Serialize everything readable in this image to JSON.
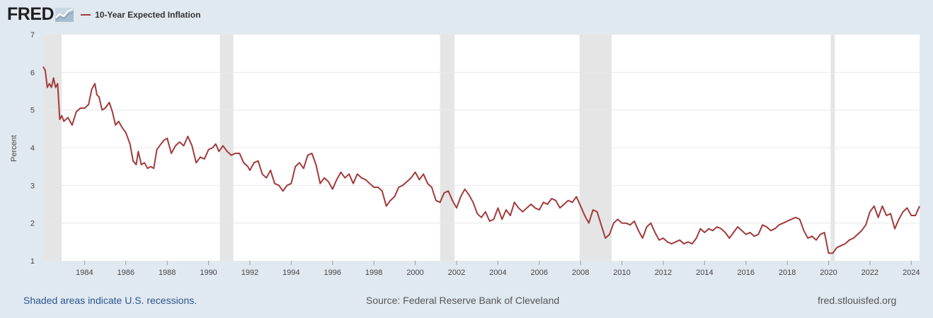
{
  "header": {
    "logo_text": "FRED",
    "legend_label": "10-Year Expected Inflation"
  },
  "footer": {
    "recession_note": "Shaded areas indicate U.S. recessions.",
    "source": "Source: Federal Reserve Bank of Cleveland",
    "site": "fred.stlouisfed.org"
  },
  "chart_data": {
    "type": "line",
    "title": "",
    "xlabel": "",
    "ylabel": "Percent",
    "xlim": [
      1982.0,
      2024.4
    ],
    "ylim": [
      1,
      7
    ],
    "y_ticks": [
      1,
      2,
      3,
      4,
      5,
      6,
      7
    ],
    "x_ticks": [
      1984,
      1986,
      1988,
      1990,
      1992,
      1994,
      1996,
      1998,
      2000,
      2002,
      2004,
      2006,
      2008,
      2010,
      2012,
      2014,
      2016,
      2018,
      2020,
      2022,
      2024
    ],
    "grid": true,
    "legend": "top-left",
    "colors": {
      "series": "#a23a3c",
      "recession": "#e5e5e5",
      "plot_bg": "#ffffff"
    },
    "recessions": [
      [
        1982.0,
        1982.9
      ],
      [
        1990.55,
        1991.2
      ],
      [
        2001.2,
        2001.9
      ],
      [
        2007.95,
        2009.5
      ],
      [
        2020.1,
        2020.3
      ]
    ],
    "series": [
      {
        "name": "10-Year Expected Inflation",
        "x": [
          1982.0,
          1982.1,
          1982.2,
          1982.3,
          1982.4,
          1982.5,
          1982.6,
          1982.7,
          1982.8,
          1982.9,
          1983.0,
          1983.2,
          1983.4,
          1983.6,
          1983.8,
          1984.0,
          1984.2,
          1984.35,
          1984.5,
          1984.6,
          1984.7,
          1984.85,
          1985.0,
          1985.2,
          1985.35,
          1985.5,
          1985.65,
          1985.8,
          1986.0,
          1986.2,
          1986.35,
          1986.5,
          1986.6,
          1986.75,
          1986.9,
          1987.05,
          1987.2,
          1987.35,
          1987.5,
          1987.7,
          1987.85,
          1988.0,
          1988.2,
          1988.4,
          1988.6,
          1988.8,
          1989.0,
          1989.2,
          1989.4,
          1989.6,
          1989.8,
          1990.0,
          1990.2,
          1990.35,
          1990.5,
          1990.7,
          1990.9,
          1991.1,
          1991.3,
          1991.5,
          1991.7,
          1991.9,
          1992.0,
          1992.2,
          1992.4,
          1992.6,
          1992.8,
          1993.0,
          1993.2,
          1993.4,
          1993.6,
          1993.8,
          1994.0,
          1994.2,
          1994.4,
          1994.6,
          1994.8,
          1995.0,
          1995.2,
          1995.4,
          1995.6,
          1995.8,
          1996.0,
          1996.2,
          1996.4,
          1996.6,
          1996.8,
          1997.0,
          1997.2,
          1997.4,
          1997.6,
          1997.8,
          1998.0,
          1998.2,
          1998.4,
          1998.6,
          1998.8,
          1999.0,
          1999.2,
          1999.4,
          1999.6,
          1999.8,
          2000.0,
          2000.2,
          2000.4,
          2000.6,
          2000.8,
          2001.0,
          2001.2,
          2001.4,
          2001.6,
          2001.8,
          2002.0,
          2002.2,
          2002.4,
          2002.6,
          2002.8,
          2003.0,
          2003.2,
          2003.4,
          2003.6,
          2003.8,
          2004.0,
          2004.2,
          2004.4,
          2004.6,
          2004.8,
          2005.0,
          2005.2,
          2005.4,
          2005.6,
          2005.8,
          2006.0,
          2006.2,
          2006.4,
          2006.6,
          2006.8,
          2007.0,
          2007.2,
          2007.4,
          2007.6,
          2007.8,
          2008.0,
          2008.2,
          2008.4,
          2008.6,
          2008.8,
          2009.0,
          2009.2,
          2009.4,
          2009.6,
          2009.8,
          2010.0,
          2010.2,
          2010.4,
          2010.6,
          2010.8,
          2011.0,
          2011.2,
          2011.4,
          2011.6,
          2011.8,
          2012.0,
          2012.2,
          2012.4,
          2012.6,
          2012.8,
          2013.0,
          2013.2,
          2013.4,
          2013.6,
          2013.8,
          2014.0,
          2014.2,
          2014.4,
          2014.6,
          2014.8,
          2015.0,
          2015.2,
          2015.4,
          2015.6,
          2015.8,
          2016.0,
          2016.2,
          2016.4,
          2016.6,
          2016.8,
          2017.0,
          2017.2,
          2017.4,
          2017.6,
          2017.8,
          2018.0,
          2018.2,
          2018.4,
          2018.6,
          2018.8,
          2019.0,
          2019.2,
          2019.4,
          2019.6,
          2019.8,
          2020.0,
          2020.2,
          2020.4,
          2020.6,
          2020.8,
          2021.0,
          2021.2,
          2021.4,
          2021.6,
          2021.8,
          2022.0,
          2022.2,
          2022.4,
          2022.6,
          2022.8,
          2023.0,
          2023.2,
          2023.4,
          2023.6,
          2023.8,
          2024.0,
          2024.2,
          2024.4
        ],
        "values": [
          6.15,
          6.05,
          5.6,
          5.7,
          5.6,
          5.85,
          5.6,
          5.7,
          4.75,
          4.85,
          4.7,
          4.8,
          4.6,
          4.95,
          5.05,
          5.05,
          5.15,
          5.55,
          5.7,
          5.4,
          5.35,
          5.0,
          5.05,
          5.2,
          4.95,
          4.6,
          4.7,
          4.55,
          4.4,
          4.1,
          3.65,
          3.55,
          3.9,
          3.55,
          3.6,
          3.45,
          3.5,
          3.45,
          3.95,
          4.1,
          4.2,
          4.25,
          3.85,
          4.05,
          4.15,
          4.05,
          4.3,
          4.05,
          3.6,
          3.75,
          3.7,
          3.95,
          4.0,
          4.1,
          3.9,
          4.05,
          3.9,
          3.8,
          3.85,
          3.85,
          3.6,
          3.5,
          3.4,
          3.6,
          3.65,
          3.3,
          3.2,
          3.4,
          3.05,
          3.0,
          2.85,
          3.0,
          3.05,
          3.5,
          3.6,
          3.45,
          3.8,
          3.85,
          3.55,
          3.05,
          3.2,
          3.1,
          2.9,
          3.15,
          3.35,
          3.2,
          3.3,
          3.05,
          3.3,
          3.2,
          3.15,
          3.05,
          2.95,
          2.95,
          2.85,
          2.45,
          2.6,
          2.7,
          2.95,
          3.0,
          3.1,
          3.2,
          3.35,
          3.15,
          3.3,
          3.05,
          2.95,
          2.6,
          2.55,
          2.8,
          2.85,
          2.6,
          2.4,
          2.7,
          2.9,
          2.75,
          2.55,
          2.25,
          2.15,
          2.3,
          2.05,
          2.1,
          2.4,
          2.1,
          2.35,
          2.2,
          2.55,
          2.4,
          2.3,
          2.4,
          2.5,
          2.4,
          2.35,
          2.55,
          2.5,
          2.65,
          2.6,
          2.4,
          2.5,
          2.6,
          2.55,
          2.7,
          2.45,
          2.2,
          2.0,
          2.35,
          2.3,
          1.95,
          1.6,
          1.7,
          2.0,
          2.1,
          2.0,
          2.0,
          1.95,
          2.05,
          1.8,
          1.6,
          1.9,
          2.0,
          1.75,
          1.55,
          1.6,
          1.5,
          1.45,
          1.5,
          1.55,
          1.45,
          1.5,
          1.45,
          1.6,
          1.85,
          1.75,
          1.85,
          1.8,
          1.9,
          1.85,
          1.75,
          1.6,
          1.75,
          1.9,
          1.8,
          1.7,
          1.75,
          1.65,
          1.7,
          1.95,
          1.9,
          1.8,
          1.85,
          1.95,
          2.0,
          2.05,
          2.1,
          2.15,
          2.1,
          1.8,
          1.6,
          1.65,
          1.55,
          1.7,
          1.75,
          1.2,
          1.2,
          1.35,
          1.4,
          1.45,
          1.55,
          1.6,
          1.7,
          1.8,
          1.95,
          2.3,
          2.45,
          2.15,
          2.45,
          2.2,
          2.25,
          1.85,
          2.1,
          2.3,
          2.4,
          2.2,
          2.2,
          2.45
        ]
      }
    ]
  }
}
